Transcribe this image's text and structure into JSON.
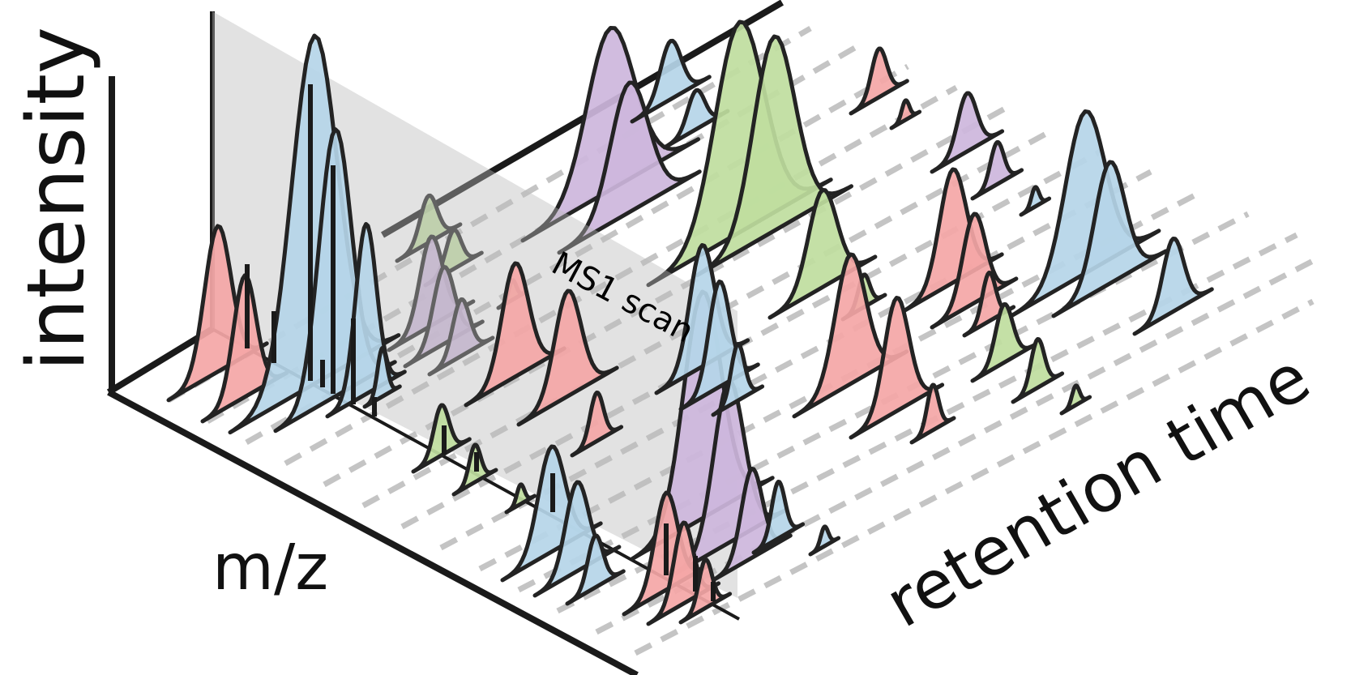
{
  "labels": {
    "intensity": "intensity",
    "mz": "m/z",
    "retention_time": "retention time",
    "scan": "MS1 scan"
  },
  "colors": {
    "red": "#f4a6a6",
    "blue": "#b5d5e8",
    "purple": "#cdb6dc",
    "green": "#bfdd9e",
    "outline": "#232323",
    "axis": "#1a1a1a",
    "dash": "#c4c4c4",
    "plane": "#b9b9b9"
  },
  "peak_color_names": [
    "red",
    "blue",
    "purple",
    "green"
  ]
}
